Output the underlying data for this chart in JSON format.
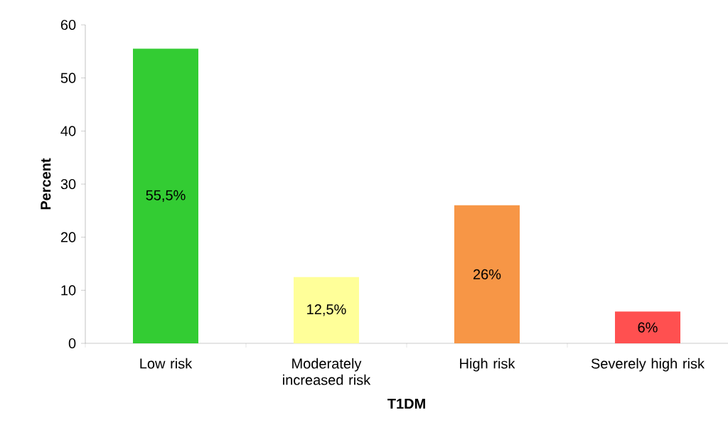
{
  "chart_data": {
    "type": "bar",
    "xlabel": "T1DM",
    "ylabel": "Percent",
    "categories": [
      "Low risk",
      "Moderately increased risk",
      "High risk",
      "Severely high risk"
    ],
    "values": [
      55.5,
      12.5,
      26,
      6
    ],
    "colors": [
      "#33cc33",
      "#ffff99",
      "#f79646",
      "#ff5050"
    ],
    "value_labels": [
      "55,5%",
      "12,5%",
      "26%",
      "6%"
    ],
    "ylim": [
      0,
      60
    ],
    "yticks": [
      0,
      10,
      20,
      30,
      40,
      50,
      60
    ]
  }
}
